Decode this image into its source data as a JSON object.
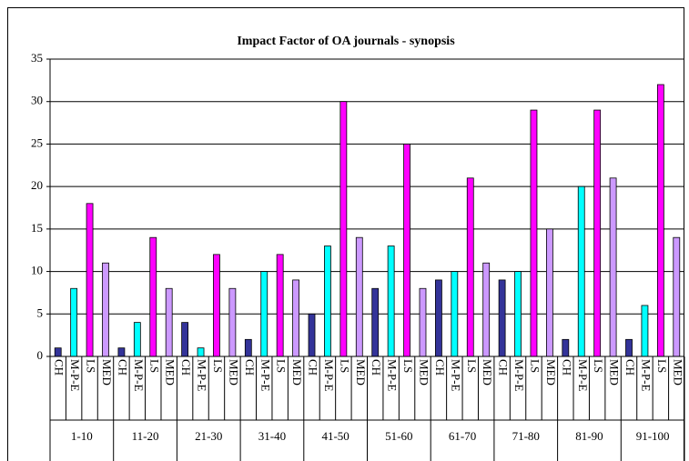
{
  "chart_data": {
    "type": "bar",
    "title": "Impact Factor of OA journals - synopsis",
    "categories": [
      "1-10",
      "11-20",
      "21-30",
      "31-40",
      "41-50",
      "51-60",
      "61-70",
      "71-80",
      "81-90",
      "91-100"
    ],
    "series": [
      {
        "name": "CH",
        "color": "#333399",
        "values": [
          1,
          1,
          4,
          2,
          5,
          8,
          9,
          9,
          2,
          2
        ]
      },
      {
        "name": "M-P-E",
        "color": "#00ffff",
        "values": [
          8,
          4,
          1,
          10,
          13,
          13,
          10,
          10,
          20,
          6
        ]
      },
      {
        "name": "LS",
        "color": "#ff00ff",
        "values": [
          18,
          14,
          12,
          12,
          30,
          25,
          21,
          29,
          29,
          32
        ]
      },
      {
        "name": "MED",
        "color": "#cc99ff",
        "values": [
          11,
          8,
          8,
          9,
          14,
          8,
          11,
          15,
          21,
          14
        ]
      }
    ],
    "ylim": [
      0,
      35
    ],
    "yticks": [
      0,
      5,
      10,
      15,
      20,
      25,
      30,
      35
    ],
    "grid": true
  }
}
